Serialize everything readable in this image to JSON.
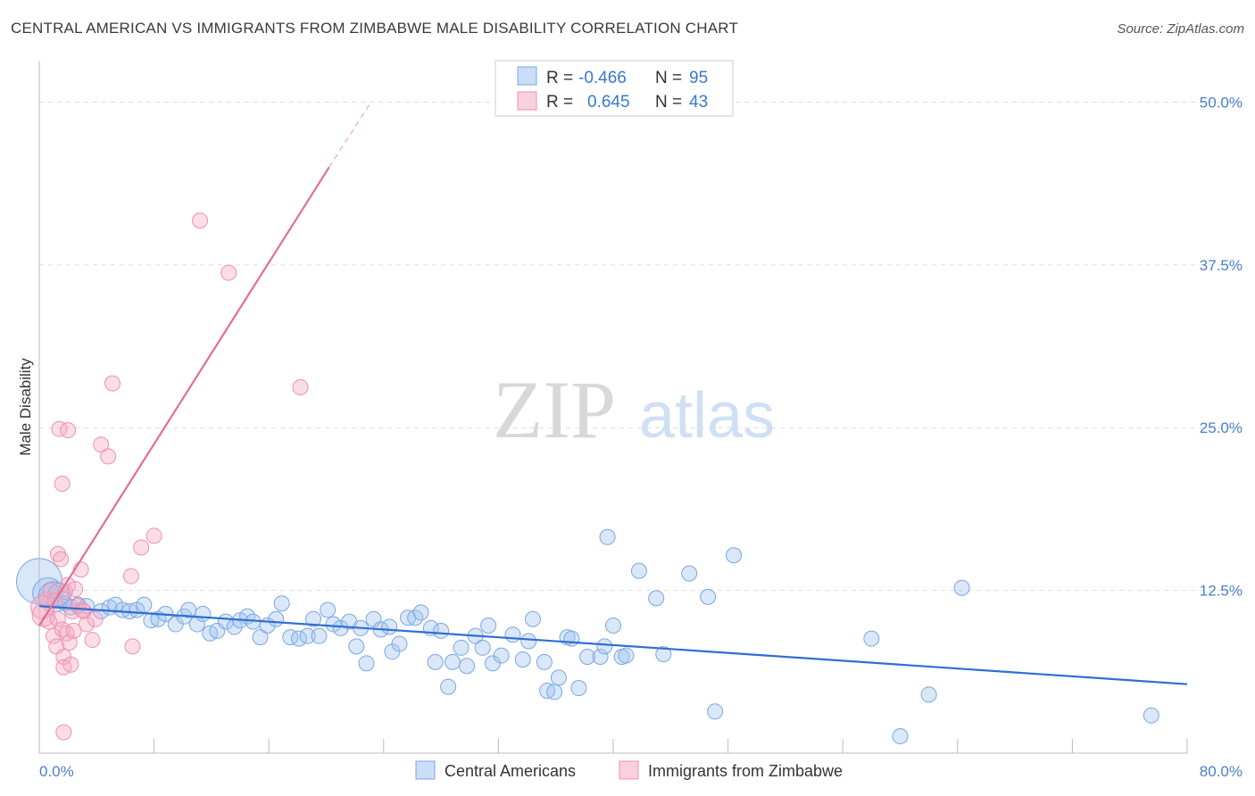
{
  "title": "CENTRAL AMERICAN VS IMMIGRANTS FROM ZIMBABWE MALE DISABILITY CORRELATION CHART",
  "source": "Source: ZipAtlas.com",
  "watermark": {
    "zip": "ZIP",
    "atlas": "atlas"
  },
  "colors": {
    "blue_fill": "rgba(160,195,240,0.40)",
    "blue_stroke": "#7aa7e0",
    "blue_line": "#2f6fd1",
    "pink_fill": "rgba(244,170,195,0.40)",
    "pink_stroke": "#ec92b0",
    "pink_line": "#e36d96",
    "grid": "#dddddd",
    "axis_label": "#4a7fcc"
  },
  "legend_top": {
    "rows": [
      {
        "r_label": "R =",
        "r_value": "-0.466",
        "n_label": "N =",
        "n_value": "95"
      },
      {
        "r_label": "R =",
        "r_value": "0.645",
        "n_label": "N =",
        "n_value": "43"
      }
    ]
  },
  "chart_data": {
    "type": "scatter",
    "title": "CENTRAL AMERICAN VS IMMIGRANTS FROM ZIMBABWE MALE DISABILITY CORRELATION CHART",
    "xlabel": "",
    "ylabel": "Male Disability",
    "xlim": [
      0,
      80
    ],
    "ylim": [
      0,
      52.5
    ],
    "x_tick_labels": [
      {
        "value": 0,
        "label": "0.0%"
      },
      {
        "value": 80,
        "label": "80.0%"
      }
    ],
    "y_tick_labels": [
      {
        "value": 12.5,
        "label": "12.5%"
      },
      {
        "value": 25,
        "label": "25.0%"
      },
      {
        "value": 37.5,
        "label": "37.5%"
      },
      {
        "value": 50,
        "label": "50.0%"
      }
    ],
    "grid": true,
    "legend_position": "top-center",
    "series": [
      {
        "name": "Central Americans",
        "color": "#7aa7e0",
        "R": -0.466,
        "N": 95,
        "trend": {
          "x": [
            0,
            80
          ],
          "y": [
            11.3,
            5.3
          ],
          "style": "solid"
        },
        "points": [
          [
            0.0,
            13.2,
            3
          ],
          [
            0.6,
            12.3,
            2
          ],
          [
            1.0,
            12.0,
            2
          ],
          [
            1.4,
            12.2,
            1.5
          ],
          [
            1.8,
            11.5,
            1
          ],
          [
            2.2,
            11.2,
            1
          ],
          [
            2.7,
            11.4,
            1
          ],
          [
            3.3,
            11.3,
            1
          ],
          [
            4.3,
            10.9,
            1
          ],
          [
            4.9,
            11.2,
            1
          ],
          [
            5.3,
            11.4,
            1
          ],
          [
            5.8,
            11.0,
            1
          ],
          [
            6.3,
            10.9,
            1
          ],
          [
            6.8,
            11.0,
            1
          ],
          [
            7.3,
            11.4,
            1
          ],
          [
            7.8,
            10.2,
            1
          ],
          [
            8.3,
            10.3,
            1
          ],
          [
            8.8,
            10.7,
            1
          ],
          [
            9.5,
            9.9,
            1
          ],
          [
            10.1,
            10.5,
            1
          ],
          [
            10.4,
            11.0,
            1
          ],
          [
            11.0,
            9.9,
            1
          ],
          [
            11.4,
            10.7,
            1
          ],
          [
            11.9,
            9.2,
            1
          ],
          [
            12.4,
            9.4,
            1
          ],
          [
            13.0,
            10.1,
            1
          ],
          [
            13.6,
            9.7,
            1
          ],
          [
            14.0,
            10.2,
            1
          ],
          [
            14.5,
            10.5,
            1
          ],
          [
            14.9,
            10.1,
            1
          ],
          [
            15.4,
            8.9,
            1
          ],
          [
            15.9,
            9.8,
            1
          ],
          [
            16.5,
            10.3,
            1
          ],
          [
            16.9,
            11.5,
            1
          ],
          [
            17.5,
            8.9,
            1
          ],
          [
            18.1,
            8.8,
            1
          ],
          [
            18.7,
            9.0,
            1
          ],
          [
            19.1,
            10.3,
            1
          ],
          [
            19.5,
            9.0,
            1
          ],
          [
            20.1,
            11.0,
            1
          ],
          [
            20.5,
            9.9,
            1
          ],
          [
            21.0,
            9.6,
            1
          ],
          [
            21.6,
            10.1,
            1
          ],
          [
            22.1,
            8.2,
            1
          ],
          [
            22.4,
            9.6,
            1
          ],
          [
            22.8,
            6.9,
            1
          ],
          [
            23.3,
            10.3,
            1
          ],
          [
            23.8,
            9.5,
            1
          ],
          [
            24.4,
            9.7,
            1
          ],
          [
            24.6,
            7.8,
            1
          ],
          [
            25.1,
            8.4,
            1
          ],
          [
            25.7,
            10.4,
            1
          ],
          [
            26.2,
            10.4,
            1
          ],
          [
            26.6,
            10.8,
            1
          ],
          [
            27.3,
            9.6,
            1
          ],
          [
            27.6,
            7.0,
            1
          ],
          [
            28.0,
            9.4,
            1
          ],
          [
            28.5,
            5.1,
            1
          ],
          [
            28.8,
            7.0,
            1
          ],
          [
            29.4,
            8.1,
            1
          ],
          [
            29.8,
            6.7,
            1
          ],
          [
            30.4,
            9.0,
            1
          ],
          [
            30.9,
            8.1,
            1
          ],
          [
            31.3,
            9.8,
            1
          ],
          [
            31.6,
            6.9,
            1
          ],
          [
            32.2,
            7.5,
            1
          ],
          [
            33.0,
            9.1,
            1
          ],
          [
            33.7,
            7.2,
            1
          ],
          [
            34.1,
            8.6,
            1
          ],
          [
            34.4,
            10.3,
            1
          ],
          [
            35.2,
            7.0,
            1
          ],
          [
            35.4,
            4.8,
            1
          ],
          [
            35.9,
            4.7,
            1
          ],
          [
            36.2,
            5.8,
            1
          ],
          [
            36.8,
            8.9,
            1
          ],
          [
            37.1,
            8.8,
            1
          ],
          [
            37.6,
            5.0,
            1
          ],
          [
            38.2,
            7.4,
            1
          ],
          [
            39.1,
            7.4,
            1
          ],
          [
            39.6,
            16.6,
            1
          ],
          [
            39.4,
            8.2,
            1
          ],
          [
            40.0,
            9.8,
            1
          ],
          [
            40.6,
            7.4,
            1
          ],
          [
            40.9,
            7.5,
            1
          ],
          [
            41.8,
            14.0,
            1
          ],
          [
            43.0,
            11.9,
            1
          ],
          [
            43.5,
            7.6,
            1
          ],
          [
            45.3,
            13.8,
            1
          ],
          [
            46.6,
            12.0,
            1
          ],
          [
            47.1,
            3.2,
            1
          ],
          [
            48.4,
            15.2,
            1
          ],
          [
            58.0,
            8.8,
            1
          ],
          [
            60.0,
            1.3,
            1
          ],
          [
            62.0,
            4.5,
            1
          ],
          [
            64.3,
            12.7,
            1
          ],
          [
            77.5,
            2.9,
            1
          ]
        ]
      },
      {
        "name": "Immigrants from Zimbabwe",
        "color": "#ec92b0",
        "R": 0.645,
        "N": 43,
        "trend": {
          "x": [
            0,
            20.2,
            23.0
          ],
          "y": [
            9.8,
            45.0,
            49.8
          ],
          "style": "solid then dashed"
        },
        "points": [
          [
            0.2,
            11.2,
            1.5
          ],
          [
            0.3,
            10.6,
            1.5
          ],
          [
            0.5,
            11.8,
            1
          ],
          [
            0.7,
            10.1,
            1
          ],
          [
            0.8,
            12.5,
            1
          ],
          [
            1.0,
            9.0,
            1
          ],
          [
            1.1,
            11.7,
            1
          ],
          [
            1.2,
            8.2,
            1
          ],
          [
            1.3,
            10.3,
            1
          ],
          [
            1.3,
            15.3,
            1
          ],
          [
            1.4,
            24.9,
            1
          ],
          [
            1.5,
            14.9,
            1
          ],
          [
            1.6,
            9.5,
            1
          ],
          [
            1.6,
            20.7,
            1
          ],
          [
            1.7,
            7.4,
            1
          ],
          [
            1.7,
            6.6,
            1
          ],
          [
            1.7,
            1.6,
            1
          ],
          [
            1.8,
            12.4,
            1
          ],
          [
            1.9,
            9.2,
            1
          ],
          [
            2.0,
            12.9,
            1
          ],
          [
            2.0,
            24.8,
            1
          ],
          [
            2.1,
            8.5,
            1
          ],
          [
            2.2,
            6.8,
            1
          ],
          [
            2.3,
            10.9,
            1
          ],
          [
            2.4,
            9.4,
            1
          ],
          [
            2.5,
            12.6,
            1
          ],
          [
            2.7,
            11.3,
            1
          ],
          [
            2.9,
            14.1,
            1
          ],
          [
            3.0,
            11.0,
            1
          ],
          [
            3.1,
            10.9,
            1
          ],
          [
            3.3,
            9.9,
            1
          ],
          [
            3.7,
            8.7,
            1
          ],
          [
            3.9,
            10.3,
            1
          ],
          [
            4.3,
            23.7,
            1
          ],
          [
            4.8,
            22.8,
            1
          ],
          [
            5.1,
            28.4,
            1
          ],
          [
            6.4,
            13.6,
            1
          ],
          [
            6.5,
            8.2,
            1
          ],
          [
            7.1,
            15.8,
            1
          ],
          [
            8.0,
            16.7,
            1
          ],
          [
            11.2,
            40.9,
            1
          ],
          [
            13.2,
            36.9,
            1
          ],
          [
            18.2,
            28.1,
            1
          ]
        ]
      }
    ]
  }
}
